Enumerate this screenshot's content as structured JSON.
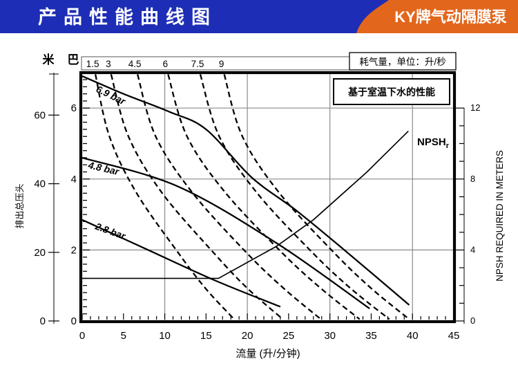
{
  "header": {
    "title": "产品性能曲线图",
    "brand": "KY牌气动隔膜泵",
    "bar_color": "#1d2db5",
    "brand_color": "#e2661c"
  },
  "chart_data": {
    "type": "line",
    "note": "基于室温下水的性能",
    "top_axis": {
      "label": "耗气量，单位：升/秒",
      "tick_labels": [
        "1.5",
        "3",
        "4.5",
        "6",
        "7.5",
        "9"
      ]
    },
    "x_axis": {
      "label": "流量 (升/分钟)",
      "min": 0,
      "max": 45,
      "tick_values": [
        0,
        5,
        10,
        15,
        20,
        25,
        30,
        35,
        40,
        45
      ],
      "tick_labels": [
        "0",
        "5",
        "10",
        "15",
        "20",
        "25",
        "30",
        "35",
        "40",
        "45"
      ],
      "gridlines": [
        10,
        20,
        30,
        40
      ]
    },
    "y_axis_bar": {
      "label": "巴",
      "min": 0,
      "max": 6.9,
      "tick_values": [
        0,
        2,
        4,
        6
      ],
      "tick_labels": [
        "0",
        "2",
        "4",
        "6"
      ],
      "gridlines": [
        2,
        4,
        6
      ]
    },
    "y_axis_meters": {
      "label": "米",
      "axis_title": "排出总压头",
      "min": 0,
      "max": 72,
      "tick_values": [
        0,
        20,
        40,
        60
      ],
      "tick_labels": [
        "0",
        "20",
        "40",
        "60"
      ]
    },
    "y_axis_npsh": {
      "label": "NPSH REQUIRED IN METERS",
      "min": 0,
      "max": 12,
      "tick_values": [
        0,
        4,
        8,
        12
      ],
      "tick_labels": [
        "0",
        "4",
        "8",
        "12"
      ]
    },
    "series": [
      {
        "name": "6.9 bar",
        "unit": "bar",
        "style": "solid",
        "points": [
          [
            0,
            6.9
          ],
          [
            5,
            6.4
          ],
          [
            10.5,
            5.9
          ],
          [
            15,
            5.4
          ],
          [
            20.5,
            4.05
          ],
          [
            26,
            3.1
          ],
          [
            32,
            1.95
          ],
          [
            39.6,
            0.45
          ]
        ]
      },
      {
        "name": "4.8 bar",
        "unit": "bar",
        "style": "solid",
        "points": [
          [
            0,
            4.6
          ],
          [
            11.5,
            3.8
          ],
          [
            23.5,
            2.2
          ],
          [
            34.8,
            0.35
          ]
        ]
      },
      {
        "name": "2.8 bar",
        "unit": "bar",
        "style": "solid",
        "points": [
          [
            0,
            2.85
          ],
          [
            8,
            2.0
          ],
          [
            16,
            1.15
          ],
          [
            24,
            0.4
          ]
        ]
      },
      {
        "name": "NPSH",
        "subscript": "r",
        "unit": "npsh",
        "style": "solid",
        "points": [
          [
            0,
            2.4
          ],
          [
            16.5,
            2.4
          ],
          [
            23.5,
            4.2
          ],
          [
            28,
            5.7
          ],
          [
            34.5,
            8.4
          ],
          [
            39.5,
            10.7
          ]
        ]
      }
    ],
    "air_curves": [
      {
        "label": "1.5",
        "unit": "bar",
        "style": "dashed",
        "points": [
          [
            1.6,
            6.95
          ],
          [
            3.3,
            5.2
          ],
          [
            6.6,
            3.6
          ],
          [
            11.7,
            1.9
          ],
          [
            15.0,
            0.9
          ],
          [
            18.4,
            0.05
          ]
        ]
      },
      {
        "label": "3",
        "unit": "bar",
        "style": "dashed",
        "points": [
          [
            3.5,
            6.95
          ],
          [
            5.6,
            5.2
          ],
          [
            9.7,
            3.6
          ],
          [
            16.0,
            1.9
          ],
          [
            20.1,
            0.9
          ],
          [
            24.3,
            0.05
          ]
        ]
      },
      {
        "label": "4.5",
        "unit": "bar",
        "style": "dashed",
        "points": [
          [
            6.7,
            6.95
          ],
          [
            8.9,
            5.2
          ],
          [
            13.4,
            3.6
          ],
          [
            20.0,
            1.9
          ],
          [
            24.5,
            0.9
          ],
          [
            28.9,
            0.05
          ]
        ]
      },
      {
        "label": "6",
        "unit": "bar",
        "style": "dashed",
        "points": [
          [
            10.4,
            6.95
          ],
          [
            12.7,
            5.2
          ],
          [
            17.4,
            3.6
          ],
          [
            24.3,
            1.9
          ],
          [
            29.0,
            0.9
          ],
          [
            33.6,
            0.05
          ]
        ]
      },
      {
        "label": "7.5",
        "unit": "bar",
        "style": "dashed",
        "points": [
          [
            14.3,
            6.95
          ],
          [
            16.6,
            5.2
          ],
          [
            21.2,
            3.6
          ],
          [
            28.0,
            1.9
          ],
          [
            32.6,
            0.9
          ],
          [
            37.2,
            0.05
          ]
        ]
      },
      {
        "label": "9",
        "unit": "bar",
        "style": "dashed",
        "points": [
          [
            17.2,
            6.95
          ],
          [
            19.4,
            5.2
          ],
          [
            23.9,
            3.6
          ],
          [
            30.6,
            1.9
          ],
          [
            35.1,
            0.9
          ],
          [
            39.6,
            0.05
          ]
        ]
      }
    ]
  }
}
